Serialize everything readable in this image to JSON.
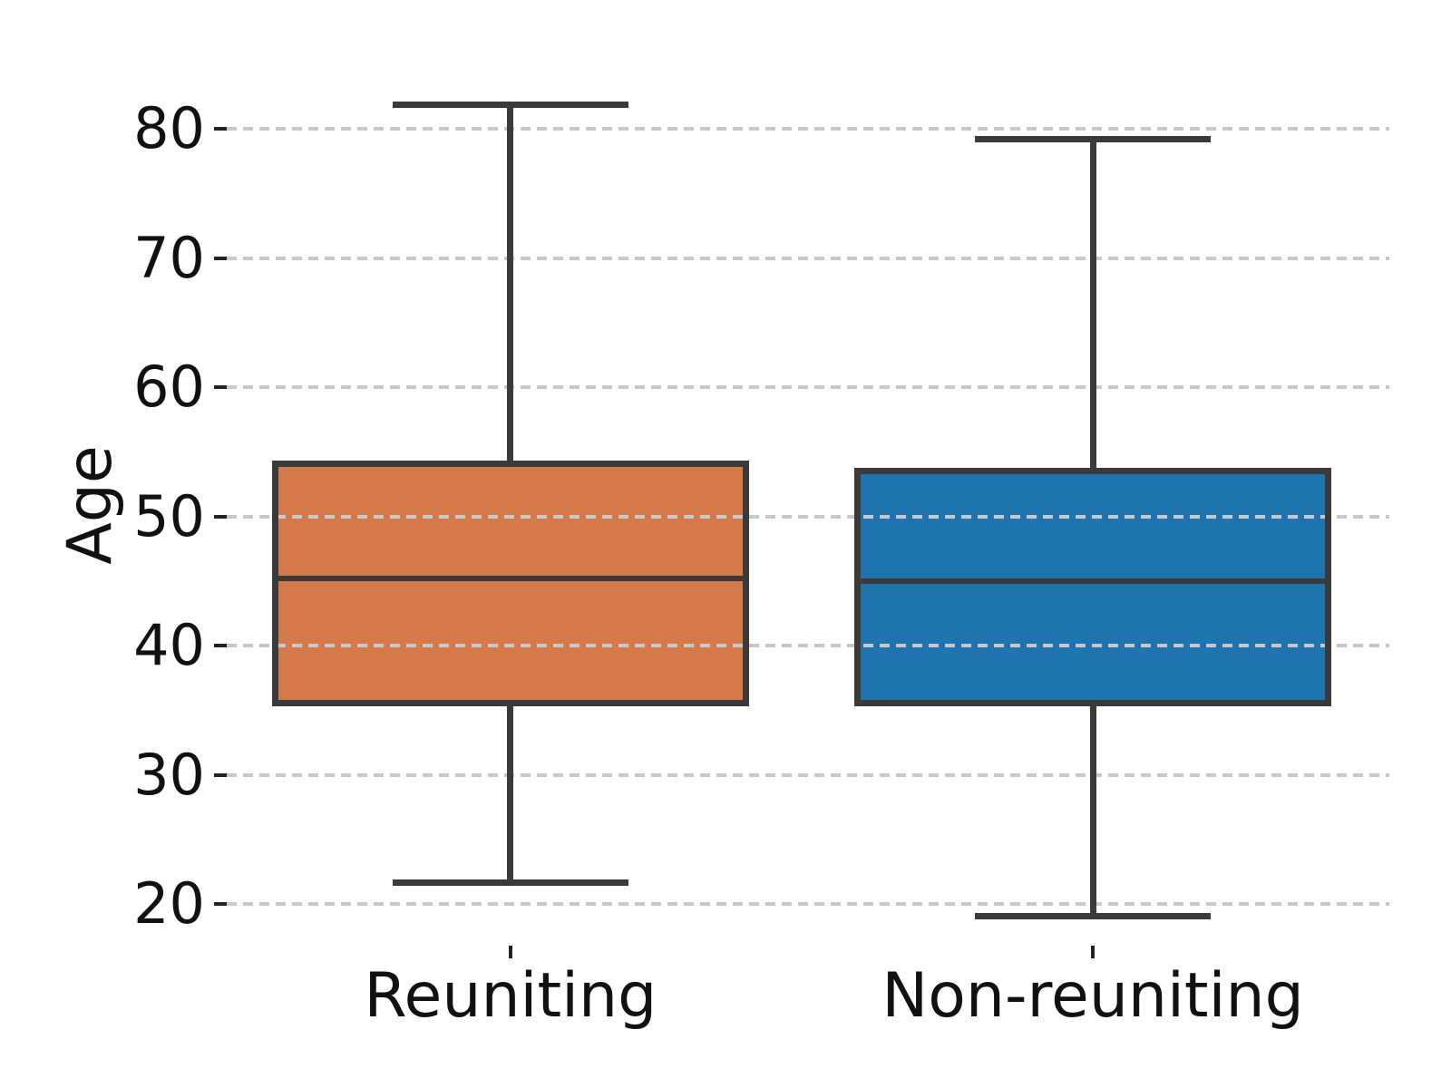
{
  "figure": {
    "background": "#ffffff"
  },
  "chart_data": {
    "type": "boxplot",
    "title": "",
    "xlabel": "",
    "ylabel": "Age",
    "categories": [
      "Reuniting",
      "Non-reuniting"
    ],
    "y_ticks": [
      20,
      30,
      40,
      50,
      60,
      70,
      80
    ],
    "ylim": [
      16.8,
      85.0
    ],
    "grid": "horizontal-dashed",
    "legend": "none",
    "series": [
      {
        "name": "Reuniting",
        "color": "#d3794a",
        "whisker_low": 21.7,
        "q1": 35.5,
        "median": 45.2,
        "q3": 54.1,
        "whisker_high": 81.9
      },
      {
        "name": "Non-reuniting",
        "color": "#1f74ad",
        "whisker_low": 19.1,
        "q1": 35.5,
        "median": 45.0,
        "q3": 53.6,
        "whisker_high": 79.2
      }
    ],
    "style": {
      "line_color": "#3a3a3a",
      "grid_color": "#c6c9cc",
      "tick_color": "#222222"
    }
  }
}
